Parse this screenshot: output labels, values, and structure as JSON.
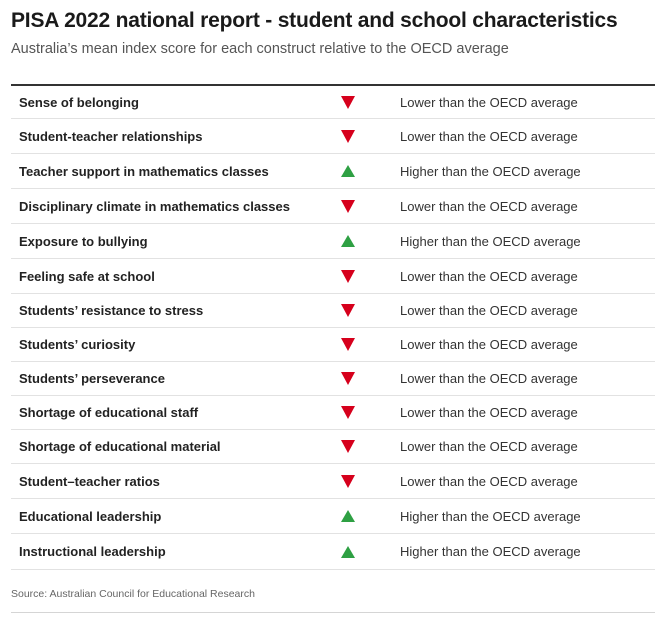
{
  "title": "PISA 2022 national report - student and school characteristics",
  "subtitle": "Australia’s mean index score for each construct relative to the OECD average",
  "source": "Source: Australian Council for Educational Research",
  "colors": {
    "lower": "#d6001c",
    "higher": "#2ea043"
  },
  "chart_data": {
    "type": "table",
    "title": "PISA 2022 national report - student and school characteristics",
    "subtitle": "Australia’s mean index score for each construct relative to the OECD average",
    "rows": [
      {
        "construct": "Sense of belonging",
        "direction": "down",
        "status": "Lower than the OECD average"
      },
      {
        "construct": "Student-teacher relationships",
        "direction": "down",
        "status": "Lower than the OECD average"
      },
      {
        "construct": "Teacher support in mathematics classes",
        "direction": "up",
        "status": "Higher than the OECD average"
      },
      {
        "construct": "Disciplinary climate in mathematics classes",
        "direction": "down",
        "status": "Lower than the OECD average"
      },
      {
        "construct": "Exposure to bullying",
        "direction": "up",
        "status": "Higher than the OECD average"
      },
      {
        "construct": "Feeling safe at school",
        "direction": "down",
        "status": "Lower than the OECD average"
      },
      {
        "construct": "Students’ resistance to stress",
        "direction": "down",
        "status": "Lower than the OECD average"
      },
      {
        "construct": "Students’ curiosity",
        "direction": "down",
        "status": "Lower than the OECD average"
      },
      {
        "construct": "Students’ perseverance",
        "direction": "down",
        "status": "Lower than the OECD average"
      },
      {
        "construct": "Shortage of educational staff",
        "direction": "down",
        "status": "Lower than the OECD average"
      },
      {
        "construct": "Shortage of educational material",
        "direction": "down",
        "status": "Lower than the OECD average"
      },
      {
        "construct": "Student–teacher ratios",
        "direction": "down",
        "status": "Lower than the OECD average"
      },
      {
        "construct": "Educational leadership",
        "direction": "up",
        "status": "Higher than the OECD average"
      },
      {
        "construct": "Instructional leadership",
        "direction": "up",
        "status": "Higher than the OECD average"
      }
    ]
  }
}
